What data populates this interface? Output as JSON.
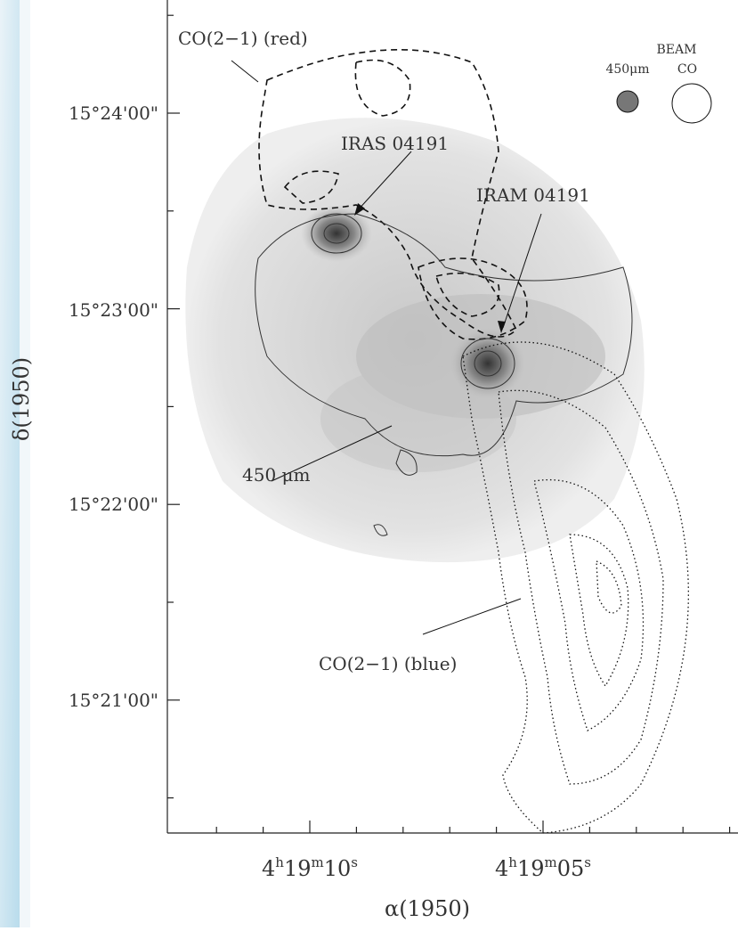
{
  "figure": {
    "y_axis": {
      "title": "δ(1950)",
      "ticks": [
        "15°24'00\"",
        "15°23'00\"",
        "15°22'00\"",
        "15°21'00\""
      ]
    },
    "x_axis": {
      "title": "α(1950)",
      "ticks": [
        {
          "parts": [
            "4",
            "h",
            "19",
            "m",
            "10",
            "s"
          ]
        },
        {
          "parts": [
            "4",
            "h",
            "19",
            "m",
            "05",
            "s"
          ]
        }
      ]
    },
    "annotations": {
      "co_red": "CO(2−1) (red)",
      "iras": "IRAS 04191",
      "iram": "IRAM 04191",
      "dust": "450 μm",
      "co_blue": "CO(2−1) (blue)"
    },
    "beam": {
      "title": "BEAM",
      "dust": "450μm",
      "co": "CO"
    }
  }
}
